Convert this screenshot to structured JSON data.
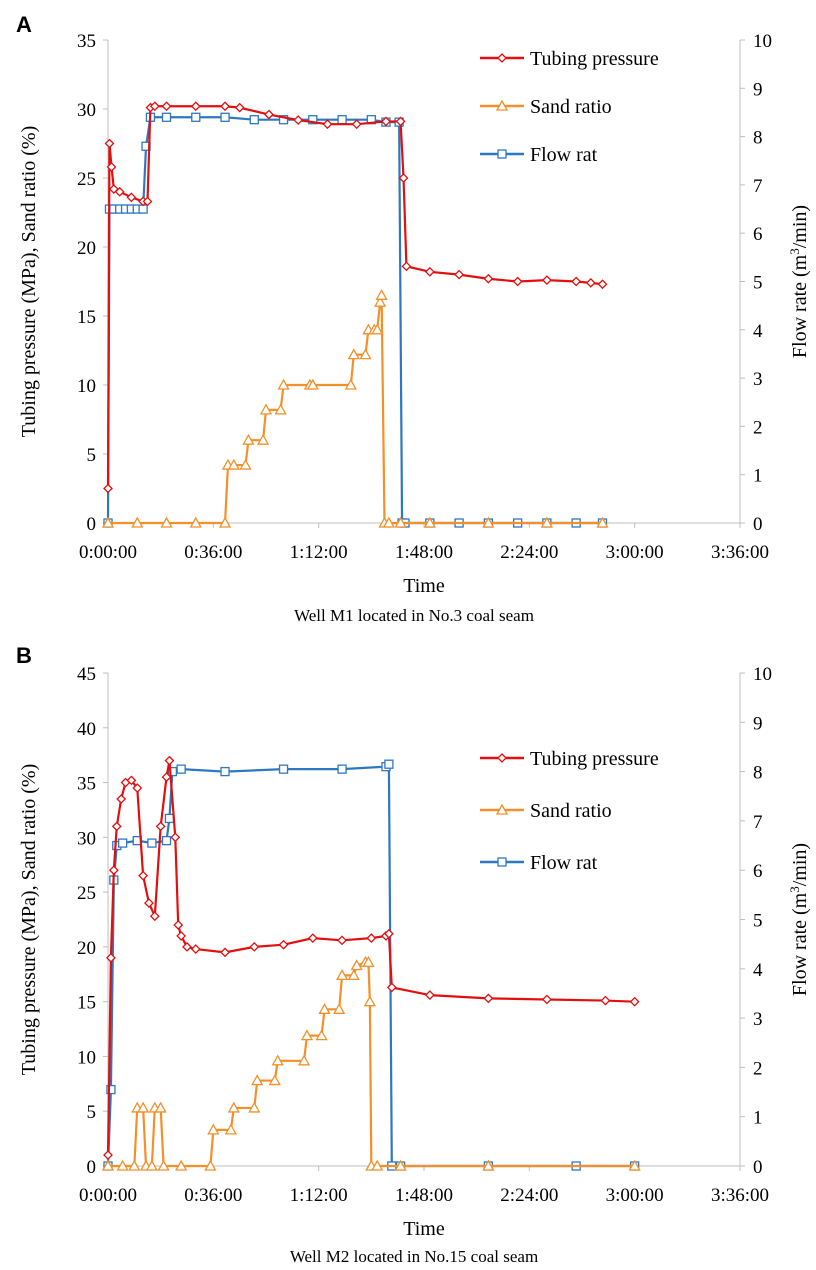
{
  "colors": {
    "tubing": "#e30f0f",
    "sand": "#f4902a",
    "flow": "#2e78c2"
  },
  "chart_data": [
    {
      "panel_label": "A",
      "type": "line",
      "caption": "Well M1 located in No.3 coal seam",
      "xlabel": "Time",
      "ylabel_left": "Tubing pressure (MPa), Sand ratio (%)",
      "ylabel_right_parts": [
        "Flow rate (m",
        "3",
        "/min)"
      ],
      "x_ticks": [
        "0:00:00",
        "0:36:00",
        "1:12:00",
        "1:48:00",
        "2:24:00",
        "3:00:00",
        "3:36:00"
      ],
      "xlim_min": [
        0,
        216
      ],
      "ylim_left": [
        0,
        35
      ],
      "y_left_ticks": [
        "0",
        "5",
        "10",
        "15",
        "20",
        "25",
        "30",
        "35"
      ],
      "ylim_right": [
        0,
        10
      ],
      "y_right_ticks": [
        "0",
        "1",
        "2",
        "3",
        "4",
        "5",
        "6",
        "7",
        "8",
        "9",
        "10"
      ],
      "legend_position": "top-right",
      "series": [
        {
          "name": "Tubing pressure",
          "axis": "left",
          "color": "#e30f0f",
          "marker": "diamond",
          "x": [
            0.0,
            0.5,
            1.2,
            2.0,
            4.0,
            8.0,
            12.0,
            13.5,
            14.5,
            16.0,
            20.0,
            30.0,
            40.0,
            45.0,
            55.0,
            65.0,
            75.0,
            85.0,
            95.0,
            100.0,
            101.0,
            102.0,
            110.0,
            120.0,
            130.0,
            140.0,
            150.0,
            160.0,
            165.0,
            169.0
          ],
          "y": [
            2.5,
            27.5,
            25.8,
            24.2,
            24.0,
            23.6,
            23.3,
            23.3,
            30.1,
            30.2,
            30.2,
            30.2,
            30.2,
            30.1,
            29.6,
            29.2,
            28.9,
            28.9,
            29.1,
            29.1,
            25.0,
            18.6,
            18.2,
            18.0,
            17.7,
            17.5,
            17.6,
            17.5,
            17.4,
            17.3
          ]
        },
        {
          "name": "Sand ratio",
          "axis": "left",
          "color": "#f4902a",
          "marker": "triangle",
          "x": [
            0.0,
            10.0,
            20.0,
            30.0,
            40.0,
            41.0,
            43.0,
            47.0,
            48.0,
            53.0,
            54.0,
            59.0,
            60.0,
            69.0,
            70.0,
            83.0,
            84.0,
            88.0,
            89.0,
            91.0,
            92.0,
            93.0,
            93.5,
            94.5,
            96.0,
            100.0,
            110.0,
            130.0,
            150.0,
            169.0
          ],
          "y": [
            0,
            0,
            0,
            0,
            0,
            4.2,
            4.2,
            4.2,
            6.0,
            6.0,
            8.2,
            8.2,
            10.0,
            10.0,
            10.0,
            10.0,
            12.2,
            12.2,
            14.0,
            14.0,
            14.0,
            16.0,
            16.5,
            0,
            0,
            0,
            0,
            0,
            0,
            0
          ]
        },
        {
          "name": "Flow rat",
          "axis": "right",
          "color": "#2e78c2",
          "marker": "square",
          "x": [
            0.0,
            0.5,
            2.0,
            4.0,
            6.0,
            8.0,
            10.0,
            12.0,
            13.0,
            14.5,
            20.0,
            30.0,
            40.0,
            50.0,
            60.0,
            70.0,
            80.0,
            90.0,
            95.0,
            99.5,
            100.5,
            101.5,
            110.0,
            120.0,
            130.0,
            140.0,
            150.0,
            160.0,
            169.0
          ],
          "y": [
            0,
            6.5,
            6.5,
            6.5,
            6.5,
            6.5,
            6.5,
            6.5,
            7.8,
            8.4,
            8.4,
            8.4,
            8.4,
            8.35,
            8.35,
            8.35,
            8.35,
            8.35,
            8.3,
            8.3,
            0,
            0,
            0,
            0,
            0,
            0,
            0,
            0,
            0
          ]
        }
      ]
    },
    {
      "panel_label": "B",
      "type": "line",
      "caption": "Well M2 located in No.15 coal seam",
      "xlabel": "Time",
      "ylabel_left": "Tubing pressure (MPa), Sand ratio (%)",
      "ylabel_right_parts": [
        "Flow rate (m",
        "3",
        "/min)"
      ],
      "x_ticks": [
        "0:00:00",
        "0:36:00",
        "1:12:00",
        "1:48:00",
        "2:24:00",
        "3:00:00",
        "3:36:00"
      ],
      "xlim_min": [
        0,
        216
      ],
      "ylim_left": [
        0,
        45
      ],
      "y_left_ticks": [
        "0",
        "5",
        "10",
        "15",
        "20",
        "25",
        "30",
        "35",
        "40",
        "45"
      ],
      "ylim_right": [
        0,
        10
      ],
      "y_right_ticks": [
        "0",
        "1",
        "2",
        "3",
        "4",
        "5",
        "6",
        "7",
        "8",
        "9",
        "10"
      ],
      "legend_position": "center-right",
      "series": [
        {
          "name": "Tubing pressure",
          "axis": "left",
          "color": "#e30f0f",
          "marker": "diamond",
          "x": [
            0.0,
            1.0,
            2.0,
            3.0,
            4.5,
            6.0,
            8.0,
            10.0,
            12.0,
            14.0,
            16.0,
            18.0,
            20.0,
            21.0,
            23.0,
            24.0,
            25.0,
            27.0,
            30.0,
            40.0,
            50.0,
            60.0,
            70.0,
            80.0,
            90.0,
            95.0,
            96.0,
            97.0,
            110.0,
            130.0,
            150.0,
            170.0,
            180.0
          ],
          "y": [
            1.0,
            19.0,
            27.0,
            31.0,
            33.5,
            35.0,
            35.2,
            34.5,
            26.5,
            24.0,
            22.8,
            31.0,
            35.5,
            37.0,
            30.0,
            22.0,
            21.0,
            20.0,
            19.8,
            19.5,
            20.0,
            20.2,
            20.8,
            20.6,
            20.8,
            21.0,
            21.2,
            16.3,
            15.6,
            15.3,
            15.2,
            15.1,
            15.0
          ]
        },
        {
          "name": "Sand ratio",
          "axis": "left",
          "color": "#f4902a",
          "marker": "triangle",
          "x": [
            0.0,
            5.0,
            9.0,
            10.0,
            12.0,
            13.0,
            15.0,
            16.0,
            18.0,
            19.0,
            25.0,
            35.0,
            36.0,
            42.0,
            43.0,
            50.0,
            51.0,
            57.0,
            58.0,
            67.0,
            68.0,
            73.0,
            74.0,
            79.0,
            80.0,
            84.0,
            85.0,
            88.0,
            89.0,
            89.5,
            90.0,
            92.0,
            100.0,
            130.0,
            180.0
          ],
          "y": [
            0,
            0,
            0,
            5.3,
            5.3,
            0,
            0,
            5.3,
            5.3,
            0,
            0,
            0,
            3.3,
            3.3,
            5.3,
            5.3,
            7.8,
            7.8,
            9.6,
            9.6,
            11.9,
            11.9,
            14.3,
            14.3,
            17.4,
            17.4,
            18.3,
            18.6,
            18.6,
            15.0,
            0,
            0,
            0,
            0,
            0
          ]
        },
        {
          "name": "Flow rat",
          "axis": "right",
          "color": "#2e78c2",
          "marker": "square",
          "x": [
            0.0,
            1.0,
            2.0,
            3.0,
            5.0,
            10.0,
            15.0,
            20.0,
            21.0,
            22.0,
            25.0,
            40.0,
            60.0,
            80.0,
            95.0,
            96.0,
            97.0,
            100.0,
            130.0,
            160.0,
            180.0
          ],
          "y": [
            0,
            1.55,
            5.8,
            6.5,
            6.55,
            6.6,
            6.55,
            6.6,
            7.05,
            8.0,
            8.05,
            8.0,
            8.05,
            8.05,
            8.1,
            8.15,
            0,
            0,
            0,
            0,
            0
          ]
        }
      ]
    }
  ]
}
